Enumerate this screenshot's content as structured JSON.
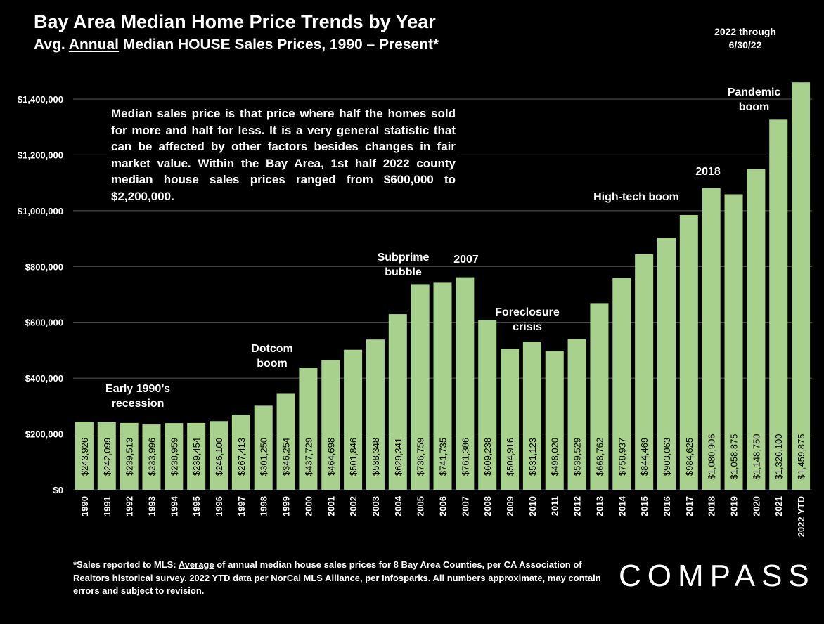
{
  "title": "Bay Area Median Home Price Trends by Year",
  "subtitle": {
    "prefix": "Avg. ",
    "underlined": "Annual",
    "suffix": " Median HOUSE Sales Prices, 1990 – Present*"
  },
  "ytd_note": [
    "2022 through",
    "6/30/22"
  ],
  "explanation": "Median sales price is that price where half the homes sold for more and half for less. It is a very general statistic that can be affected by other factors besides changes in fair market value. Within the Bay Area, 1st half 2022 county median house sales prices ranged from $600,000 to $2,200,000.",
  "annotations": {
    "recession": "Early 1990’s recession",
    "dotcom": "Dotcom boom",
    "subprime": "Subprime bubble",
    "y2007": "2007",
    "foreclosure": "Foreclosure crisis",
    "hightech": "High-tech boom",
    "y2018": "2018",
    "pandemic": "Pandemic boom"
  },
  "footnote": {
    "prefix": "*Sales reported to MLS: ",
    "underlined": "Average",
    "suffix": " of annual median house sales prices for 8 Bay Area Counties, per CA Association of Realtors historical survey. 2022 YTD data per NorCal MLS Alliance, per Infosparks. All numbers approximate, may contain errors and subject to revision."
  },
  "logo": "COMPASS",
  "colors": {
    "bar": "#a9d18e",
    "grid": "#595959",
    "background": "#000000"
  },
  "chart_data": {
    "type": "bar",
    "title": "Bay Area Median Home Price Trends by Year",
    "xlabel": "",
    "ylabel": "",
    "ylim": [
      0,
      1400000
    ],
    "yticks": [
      0,
      200000,
      400000,
      600000,
      800000,
      1000000,
      1200000,
      1400000
    ],
    "ytick_labels": [
      "$0",
      "$200,000",
      "$400,000",
      "$600,000",
      "$800,000",
      "$1,000,000",
      "$1,200,000",
      "$1,400,000"
    ],
    "grid": true,
    "categories": [
      "1990",
      "1991",
      "1992",
      "1993",
      "1994",
      "1995",
      "1996",
      "1997",
      "1998",
      "1999",
      "2000",
      "2001",
      "2002",
      "2003",
      "2004",
      "2005",
      "2006",
      "2007",
      "2008",
      "2009",
      "2010",
      "2011",
      "2012",
      "2013",
      "2014",
      "2015",
      "2016",
      "2017",
      "2018",
      "2019",
      "2020",
      "2021",
      "2022 YTD"
    ],
    "values": [
      243926,
      242099,
      239513,
      233996,
      238959,
      239454,
      246100,
      267413,
      301250,
      346254,
      437729,
      464698,
      501846,
      538348,
      629341,
      736759,
      741735,
      761386,
      609238,
      504916,
      531123,
      498020,
      539529,
      668762,
      758937,
      844469,
      903063,
      984625,
      1080906,
      1058875,
      1148750,
      1326100,
      1459875
    ],
    "data_labels": [
      "$243,926",
      "$242,099",
      "$239,513",
      "$233,996",
      "$238,959",
      "$239,454",
      "$246,100",
      "$267,413",
      "$301,250",
      "$346,254",
      "$437,729",
      "$464,698",
      "$501,846",
      "$538,348",
      "$629,341",
      "$736,759",
      "$741,735",
      "$761,386",
      "$609,238",
      "$504,916",
      "$531,123",
      "$498,020",
      "$539,529",
      "$668,762",
      "$758,937",
      "$844,469",
      "$903,063",
      "$984,625",
      "$1,080,906",
      "$1,058,875",
      "$1,148,750",
      "$1,326,100",
      "$1,459,875"
    ]
  }
}
